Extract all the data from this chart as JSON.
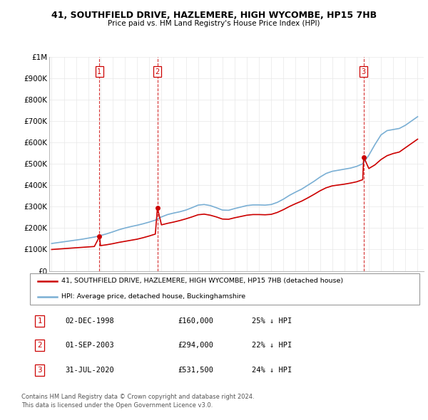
{
  "title": "41, SOUTHFIELD DRIVE, HAZLEMERE, HIGH WYCOMBE, HP15 7HB",
  "subtitle": "Price paid vs. HM Land Registry's House Price Index (HPI)",
  "legend_red": "41, SOUTHFIELD DRIVE, HAZLEMERE, HIGH WYCOMBE, HP15 7HB (detached house)",
  "legend_blue": "HPI: Average price, detached house, Buckinghamshire",
  "footer1": "Contains HM Land Registry data © Crown copyright and database right 2024.",
  "footer2": "This data is licensed under the Open Government Licence v3.0.",
  "transactions": [
    {
      "num": 1,
      "date": "02-DEC-1998",
      "price": "£160,000",
      "change": "25% ↓ HPI",
      "year": 1998.92
    },
    {
      "num": 2,
      "date": "01-SEP-2003",
      "price": "£294,000",
      "change": "22% ↓ HPI",
      "year": 2003.67
    },
    {
      "num": 3,
      "date": "31-JUL-2020",
      "price": "£531,500",
      "change": "24% ↓ HPI",
      "year": 2020.58
    }
  ],
  "hpi_years": [
    1995.0,
    1995.5,
    1996.0,
    1996.5,
    1997.0,
    1997.5,
    1998.0,
    1998.5,
    1999.0,
    1999.5,
    2000.0,
    2000.5,
    2001.0,
    2001.5,
    2002.0,
    2002.5,
    2003.0,
    2003.5,
    2004.0,
    2004.5,
    2005.0,
    2005.5,
    2006.0,
    2006.5,
    2007.0,
    2007.5,
    2008.0,
    2008.5,
    2009.0,
    2009.5,
    2010.0,
    2010.5,
    2011.0,
    2011.5,
    2012.0,
    2012.5,
    2013.0,
    2013.5,
    2014.0,
    2014.5,
    2015.0,
    2015.5,
    2016.0,
    2016.5,
    2017.0,
    2017.5,
    2018.0,
    2018.5,
    2019.0,
    2019.5,
    2020.0,
    2020.5,
    2021.0,
    2021.5,
    2022.0,
    2022.5,
    2023.0,
    2023.5,
    2024.0,
    2024.5,
    2025.0
  ],
  "hpi_values": [
    128000,
    132000,
    136000,
    140000,
    144000,
    148000,
    153000,
    158000,
    165000,
    173000,
    182000,
    192000,
    200000,
    207000,
    213000,
    220000,
    228000,
    237000,
    252000,
    263000,
    270000,
    276000,
    284000,
    295000,
    307000,
    310000,
    305000,
    295000,
    284000,
    283000,
    291000,
    298000,
    305000,
    308000,
    308000,
    307000,
    310000,
    320000,
    335000,
    353000,
    368000,
    382000,
    400000,
    418000,
    438000,
    455000,
    465000,
    470000,
    475000,
    480000,
    488000,
    500000,
    540000,
    590000,
    635000,
    655000,
    660000,
    665000,
    680000,
    700000,
    720000
  ],
  "red_line_years": [
    1995.0,
    1995.5,
    1996.0,
    1996.5,
    1997.0,
    1997.5,
    1998.0,
    1998.5,
    1998.92,
    1999.0,
    1999.5,
    2000.0,
    2000.5,
    2001.0,
    2001.5,
    2002.0,
    2002.5,
    2003.0,
    2003.5,
    2003.67,
    2004.0,
    2004.5,
    2005.0,
    2005.5,
    2006.0,
    2006.5,
    2007.0,
    2007.5,
    2008.0,
    2008.5,
    2009.0,
    2009.5,
    2010.0,
    2010.5,
    2011.0,
    2011.5,
    2012.0,
    2012.5,
    2013.0,
    2013.5,
    2014.0,
    2014.5,
    2015.0,
    2015.5,
    2016.0,
    2016.5,
    2017.0,
    2017.5,
    2018.0,
    2018.5,
    2019.0,
    2019.5,
    2020.0,
    2020.5,
    2020.58,
    2021.0,
    2021.5,
    2022.0,
    2022.5,
    2023.0,
    2023.5,
    2024.0,
    2024.5,
    2025.0
  ],
  "red_line_values": [
    100000,
    102000,
    104000,
    106000,
    108000,
    110000,
    112000,
    114000,
    160000,
    118000,
    122000,
    127000,
    133000,
    138000,
    143000,
    148000,
    155000,
    163000,
    172000,
    294000,
    215000,
    222000,
    228000,
    235000,
    243000,
    252000,
    262000,
    265000,
    260000,
    252000,
    242000,
    241000,
    248000,
    254000,
    260000,
    263000,
    263000,
    262000,
    264000,
    273000,
    286000,
    301000,
    314000,
    326000,
    341000,
    357000,
    374000,
    388000,
    397000,
    401000,
    405000,
    410000,
    416000,
    426000,
    531500,
    478000,
    495000,
    520000,
    538000,
    548000,
    555000,
    575000,
    595000,
    615000
  ],
  "price_paid_years": [
    1998.92,
    2003.67,
    2020.58
  ],
  "price_paid_values": [
    160000,
    294000,
    531500
  ],
  "ylim": [
    0,
    1000000
  ],
  "xlim_min": 1994.8,
  "xlim_max": 2025.5,
  "red_color": "#cc0000",
  "blue_color": "#7aafd4",
  "vline_color": "#cc0000",
  "grid_color": "#e8e8e8",
  "yticks": [
    0,
    100000,
    200000,
    300000,
    400000,
    500000,
    600000,
    700000,
    800000,
    900000,
    1000000
  ],
  "ytick_labels": [
    "£0",
    "£100K",
    "£200K",
    "£300K",
    "£400K",
    "£500K",
    "£600K",
    "£700K",
    "£800K",
    "£900K",
    "£1M"
  ]
}
